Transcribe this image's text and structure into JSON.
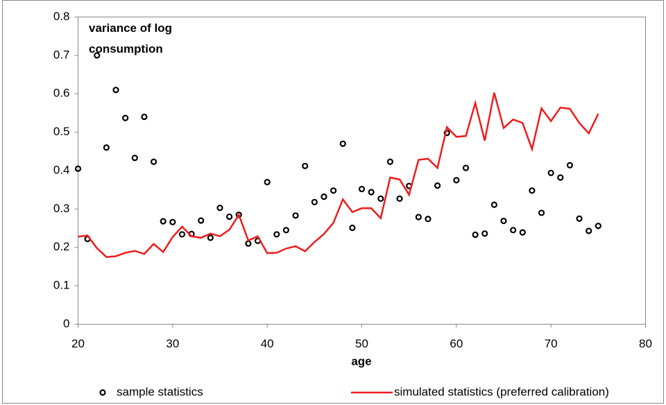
{
  "chart_data": {
    "type": "line",
    "annotation": "variance of log consumption",
    "xlabel": "age",
    "x": [
      20,
      21,
      22,
      23,
      24,
      25,
      26,
      27,
      28,
      29,
      30,
      31,
      32,
      33,
      34,
      35,
      36,
      37,
      38,
      39,
      40,
      41,
      42,
      43,
      44,
      45,
      46,
      47,
      48,
      49,
      50,
      51,
      52,
      53,
      54,
      55,
      56,
      57,
      58,
      59,
      60,
      61,
      62,
      63,
      64,
      65,
      66,
      67,
      68,
      69,
      70,
      71,
      72,
      73,
      74,
      75
    ],
    "series": [
      {
        "name": "sample statistics",
        "mode": "markers",
        "color": "#000000",
        "values": [
          0.405,
          0.222,
          0.7,
          0.46,
          0.61,
          0.537,
          0.433,
          0.54,
          0.423,
          0.268,
          0.266,
          0.234,
          0.235,
          0.27,
          0.225,
          0.303,
          0.28,
          0.285,
          0.21,
          0.217,
          0.37,
          0.234,
          0.245,
          0.283,
          0.412,
          0.318,
          0.332,
          0.348,
          0.47,
          0.251,
          0.352,
          0.344,
          0.327,
          0.423,
          0.327,
          0.36,
          0.279,
          0.274,
          0.361,
          0.498,
          0.375,
          0.407,
          0.233,
          0.236,
          0.311,
          0.269,
          0.245,
          0.239,
          0.348,
          0.29,
          0.394,
          0.382,
          0.414,
          0.275,
          0.243,
          0.256
        ]
      },
      {
        "name": "simulated statistics (preferred calibration)",
        "mode": "line",
        "color": "#ee1c1c",
        "values": [
          0.228,
          0.231,
          0.198,
          0.175,
          0.177,
          0.186,
          0.191,
          0.183,
          0.209,
          0.188,
          0.227,
          0.254,
          0.229,
          0.225,
          0.236,
          0.229,
          0.246,
          0.285,
          0.218,
          0.229,
          0.185,
          0.186,
          0.197,
          0.203,
          0.19,
          0.214,
          0.235,
          0.264,
          0.325,
          0.292,
          0.302,
          0.302,
          0.276,
          0.382,
          0.377,
          0.337,
          0.428,
          0.431,
          0.407,
          0.513,
          0.488,
          0.49,
          0.576,
          0.478,
          0.603,
          0.511,
          0.533,
          0.524,
          0.456,
          0.562,
          0.529,
          0.564,
          0.561,
          0.524,
          0.497,
          0.548
        ]
      }
    ],
    "xlim": [
      20,
      80
    ],
    "xticks": [
      20,
      30,
      40,
      50,
      60,
      70,
      80
    ],
    "ylim": [
      0,
      0.8
    ],
    "yticks": [
      0,
      0.1,
      0.2,
      0.3,
      0.4,
      0.5,
      0.6,
      0.7,
      0.8
    ],
    "grid": false,
    "legend": "bottom"
  }
}
